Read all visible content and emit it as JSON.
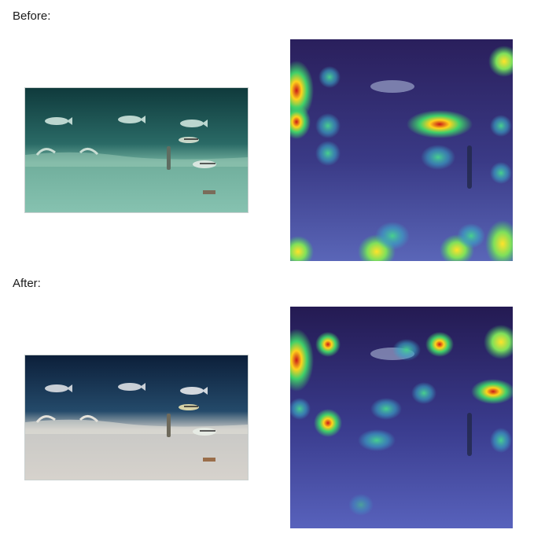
{
  "sections": [
    {
      "label": "Before:",
      "photo": "underwater-photo-original",
      "heatmap": "attention-heatmap-overlay"
    },
    {
      "label": "After:",
      "photo": "underwater-photo-enhanced",
      "heatmap": "attention-heatmap-overlay"
    }
  ],
  "colors": {
    "before_water_top": "#0f3a3c",
    "before_sand": "#86c2b0",
    "after_water_top": "#0c1f3a",
    "after_sand": "#d6d2cc",
    "heat_base_top": "#2a1f5c",
    "heat_base_bottom": "#5a66b8"
  }
}
